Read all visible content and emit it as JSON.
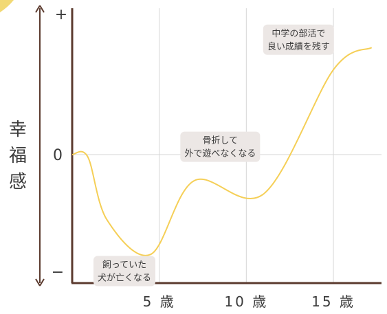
{
  "chart_data": {
    "type": "line",
    "title": "",
    "ylabel": "幸福感",
    "xlabel": "",
    "y_tick_labels": {
      "top": "+",
      "zero": "0",
      "bottom": "−"
    },
    "x_ticks": [
      {
        "value": 5,
        "label": "5 歳"
      },
      {
        "value": 10,
        "label": "10 歳"
      },
      {
        "value": 15,
        "label": "15 歳"
      }
    ],
    "xlim": [
      0,
      17.5
    ],
    "ylim": [
      -1,
      1
    ],
    "grid": true,
    "colors": {
      "line": "#f5cf57",
      "axis": "#5b3a2e",
      "grid": "#d6d6d6",
      "text": "#3b3b3b",
      "annotation_bg": "#ece7e5",
      "corner_accent": "#f2d974"
    },
    "series": [
      {
        "points": [
          {
            "x": 0,
            "y": 0
          },
          {
            "x": 0.9,
            "y": -0.02
          },
          {
            "x": 2.0,
            "y": -0.55
          },
          {
            "x": 4.5,
            "y": -0.84
          },
          {
            "x": 7.0,
            "y": -0.22
          },
          {
            "x": 11.0,
            "y": -0.33
          },
          {
            "x": 15.0,
            "y": 0.65
          },
          {
            "x": 17.2,
            "y": 0.82
          }
        ]
      }
    ],
    "annotations": [
      {
        "lines": [
          "中学の部活で",
          "良い成績を残す"
        ],
        "x": 13.0,
        "y": 0.88
      },
      {
        "lines": [
          "骨折して",
          "外で遊べなくなる"
        ],
        "x": 8.5,
        "y": 0.06
      },
      {
        "lines": [
          "飼っていた",
          "犬が亡くなる"
        ],
        "x": 3.0,
        "y": -0.98
      }
    ]
  }
}
